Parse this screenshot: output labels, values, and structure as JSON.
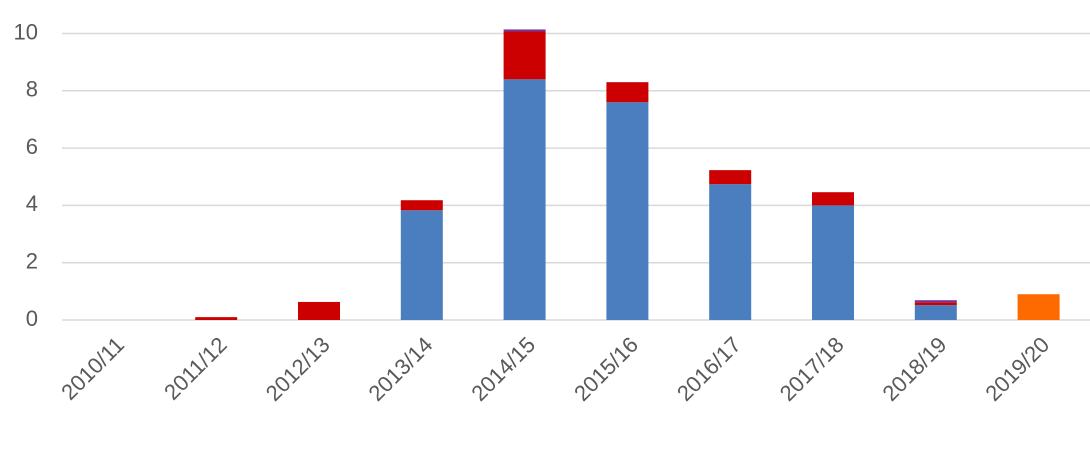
{
  "chart_data": {
    "type": "stacked_bar",
    "categories": [
      "2010/11",
      "2011/12",
      "2012/13",
      "2013/14",
      "2014/15",
      "2015/16",
      "2016/17",
      "2017/18",
      "2018/19",
      "2019/20"
    ],
    "series": [
      {
        "color": "#4a7ebf",
        "values": [
          0,
          0,
          0,
          3.83,
          8.4,
          7.6,
          4.74,
          4.0,
          0.52,
          0
        ]
      },
      {
        "color": "#cc0000",
        "values": [
          0,
          0.1,
          0.63,
          0.35,
          1.67,
          0.7,
          0.49,
          0.46,
          0.1,
          0
        ]
      },
      {
        "color": "#7030a0",
        "values": [
          0,
          0,
          0,
          0,
          0.07,
          0,
          0,
          0,
          0.07,
          0
        ]
      },
      {
        "color": "#ff6a00",
        "values": [
          0,
          0,
          0,
          0,
          0,
          0,
          0,
          0,
          0,
          0.9
        ]
      }
    ],
    "ylim": [
      0,
      10.4
    ],
    "yticks": [
      0,
      2,
      4,
      6,
      8,
      10
    ],
    "grid": true
  }
}
